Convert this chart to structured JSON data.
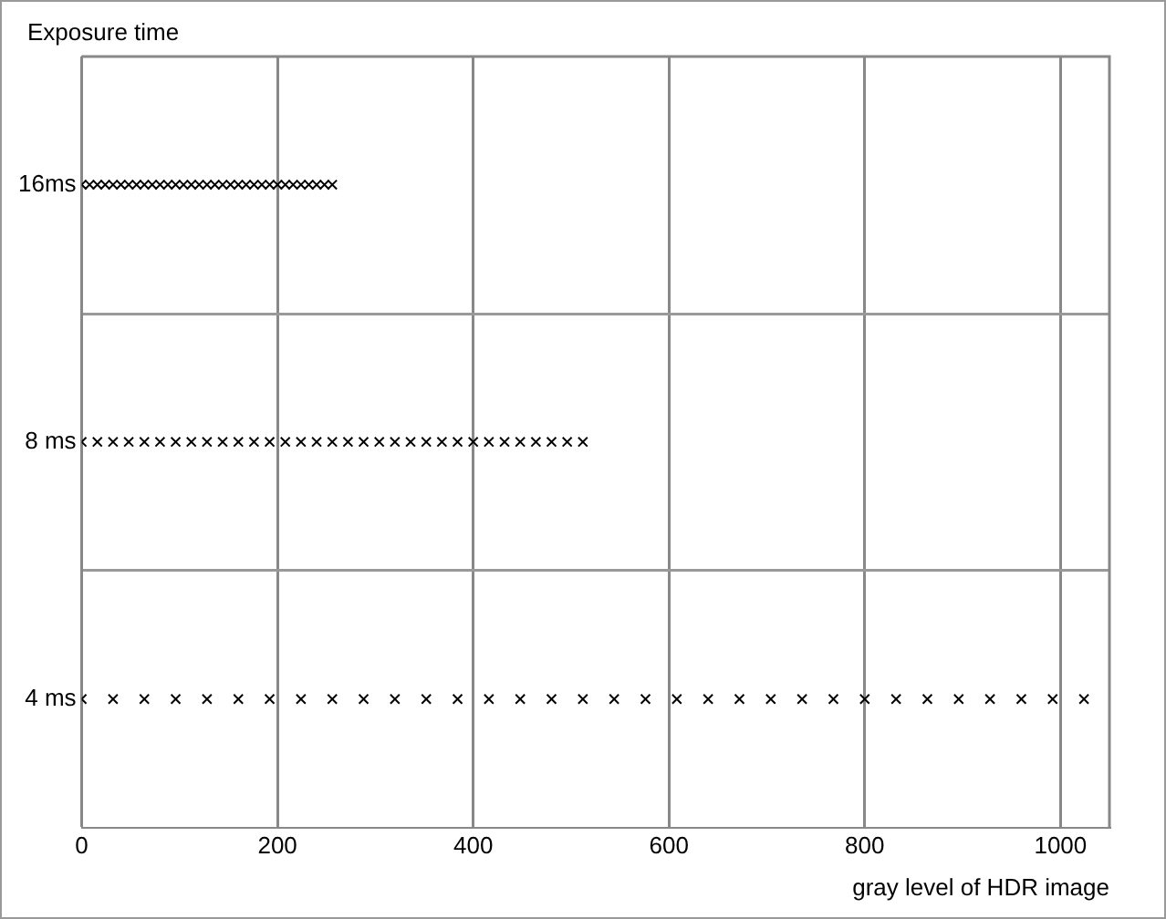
{
  "chart_data": {
    "type": "scatter",
    "ylabel": "Exposure time",
    "xlabel": "gray level of HDR image",
    "xlim": [
      0,
      1050
    ],
    "xticks": [
      0,
      200,
      400,
      600,
      800,
      1000
    ],
    "log": "y",
    "ylim": [
      2.83,
      22.6
    ],
    "yticks": [
      {
        "value": 4,
        "label": "4 ms"
      },
      {
        "value": 5.66,
        "label": null
      },
      {
        "value": 8,
        "label": "8 ms"
      },
      {
        "value": 11.3,
        "label": null
      },
      {
        "value": 16,
        "label": "16ms"
      }
    ],
    "grid": true,
    "legend": false,
    "marker": "cross",
    "series": [
      {
        "color": "#000000",
        "x": [
          0,
          8,
          16,
          24,
          32,
          40,
          48,
          56,
          64,
          72,
          80,
          88,
          96,
          104,
          112,
          120,
          128,
          136,
          144,
          152,
          160,
          168,
          176,
          184,
          192,
          200,
          208,
          216,
          224,
          232,
          240,
          248,
          256
        ],
        "values": [
          16,
          16,
          16,
          16,
          16,
          16,
          16,
          16,
          16,
          16,
          16,
          16,
          16,
          16,
          16,
          16,
          16,
          16,
          16,
          16,
          16,
          16,
          16,
          16,
          16,
          16,
          16,
          16,
          16,
          16,
          16,
          16,
          16
        ]
      },
      {
        "color": "#000000",
        "x": [
          0,
          16,
          32,
          48,
          64,
          80,
          96,
          112,
          128,
          144,
          160,
          176,
          192,
          208,
          224,
          240,
          256,
          272,
          288,
          304,
          320,
          336,
          352,
          368,
          384,
          400,
          416,
          432,
          448,
          464,
          480,
          496,
          512
        ],
        "values": [
          8,
          8,
          8,
          8,
          8,
          8,
          8,
          8,
          8,
          8,
          8,
          8,
          8,
          8,
          8,
          8,
          8,
          8,
          8,
          8,
          8,
          8,
          8,
          8,
          8,
          8,
          8,
          8,
          8,
          8,
          8,
          8,
          8
        ]
      },
      {
        "color": "#000000",
        "x": [
          0,
          32,
          64,
          96,
          128,
          160,
          192,
          224,
          256,
          288,
          320,
          352,
          384,
          416,
          448,
          480,
          512,
          544,
          576,
          608,
          640,
          672,
          704,
          736,
          768,
          800,
          832,
          864,
          896,
          928,
          960,
          992,
          1024
        ],
        "values": [
          4,
          4,
          4,
          4,
          4,
          4,
          4,
          4,
          4,
          4,
          4,
          4,
          4,
          4,
          4,
          4,
          4,
          4,
          4,
          4,
          4,
          4,
          4,
          4,
          4,
          4,
          4,
          4,
          4,
          4,
          4,
          4,
          4
        ]
      }
    ]
  }
}
